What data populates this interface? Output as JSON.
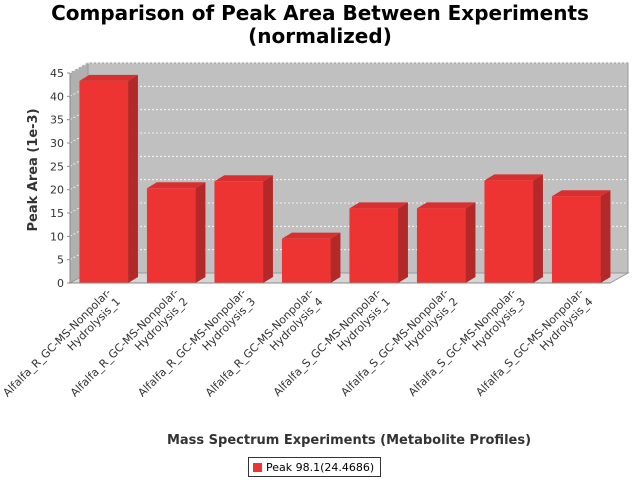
{
  "chart_data": {
    "type": "bar",
    "title_lines": [
      "Comparison of Peak Area Between Experiments",
      "(normalized)"
    ],
    "xlabel": "Mass Spectrum Experiments (Metabolite Profiles)",
    "ylabel": "Peak Area (1e-3)",
    "ylim": [
      0,
      45
    ],
    "yticks": [
      0,
      5,
      10,
      15,
      20,
      25,
      30,
      35,
      40,
      45
    ],
    "categories": [
      [
        "Alfalfa_R_GC-MS-Nonpolar-",
        "Hydrolysis_1"
      ],
      [
        "Alfalfa_R_GC-MS-Nonpolar-",
        "Hydrolysis_2"
      ],
      [
        "Alfalfa_R_GC-MS-Nonpolar-",
        "Hydrolysis_3"
      ],
      [
        "Alfalfa_R_GC-MS-Nonpolar-",
        "Hydrolysis_4"
      ],
      [
        "Alfalfa_S_GC-MS-Nonpolar-",
        "Hydrolysis_1"
      ],
      [
        "Alfalfa_S_GC-MS-Nonpolar-",
        "Hydrolysis_2"
      ],
      [
        "Alfalfa_S_GC-MS-Nonpolar-",
        "Hydrolysis_3"
      ],
      [
        "Alfalfa_S_GC-MS-Nonpolar-",
        "Hydrolysis_4"
      ]
    ],
    "series": [
      {
        "name": "Peak 98.1(24.4686)",
        "color": "#ee3333",
        "values": [
          43.3,
          20.3,
          21.8,
          9.5,
          16.0,
          16.0,
          22.0,
          18.6
        ]
      }
    ],
    "grid": true,
    "legend_position": "bottom-center"
  }
}
